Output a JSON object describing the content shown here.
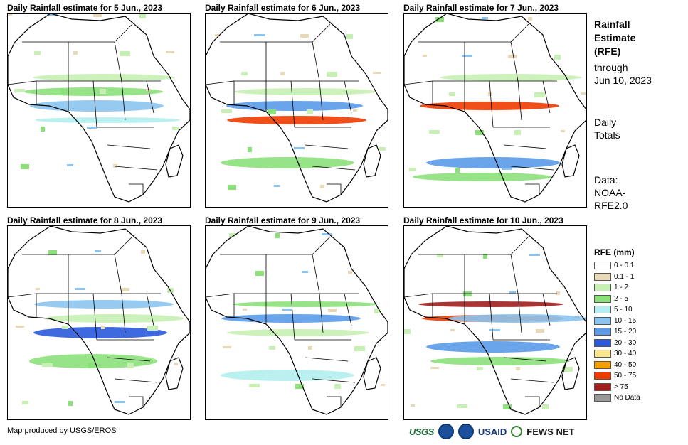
{
  "panels": [
    {
      "title": "Daily Rainfall estimate for 5 Jun., 2023"
    },
    {
      "title": "Daily Rainfall estimate for 6 Jun., 2023"
    },
    {
      "title": "Daily Rainfall estimate for 7 Jun., 2023"
    },
    {
      "title": "Daily Rainfall estimate for 8 Jun., 2023"
    },
    {
      "title": "Daily Rainfall estimate for 9 Jun., 2023"
    },
    {
      "title": "Daily Rainfall estimate for 10 Jun., 2023"
    }
  ],
  "side": {
    "line1": "Rainfall",
    "line2": "Estimate",
    "line3": "(RFE)",
    "line4": "through",
    "line5": "Jun 10, 2023",
    "line6": "Daily",
    "line7": "Totals",
    "line8": "Data:",
    "line9": "NOAA-",
    "line10": "RFE2.0"
  },
  "legend": {
    "title": "RFE (mm)",
    "items": [
      {
        "label": "0 - 0.1",
        "color": "#ffffff"
      },
      {
        "label": "0.1 - 1",
        "color": "#e8d9b8"
      },
      {
        "label": "1 - 2",
        "color": "#c8f0b4"
      },
      {
        "label": "2 - 5",
        "color": "#8ce07a"
      },
      {
        "label": "5 - 10",
        "color": "#b4eef0"
      },
      {
        "label": "10 - 15",
        "color": "#8cc4f0"
      },
      {
        "label": "15 - 20",
        "color": "#5a9ae8"
      },
      {
        "label": "20 - 30",
        "color": "#2a5adc"
      },
      {
        "label": "30 - 40",
        "color": "#fae68c"
      },
      {
        "label": "40 - 50",
        "color": "#f5a000"
      },
      {
        "label": "50 - 75",
        "color": "#f03c00"
      },
      {
        "label": "> 75",
        "color": "#a01e1e"
      },
      {
        "label": "No Data",
        "color": "#999999"
      }
    ]
  },
  "credit": "Map produced by USGS/EROS",
  "logos": {
    "usgs": "USGS",
    "usaid": "USAID",
    "fews": "FEWS NET"
  }
}
